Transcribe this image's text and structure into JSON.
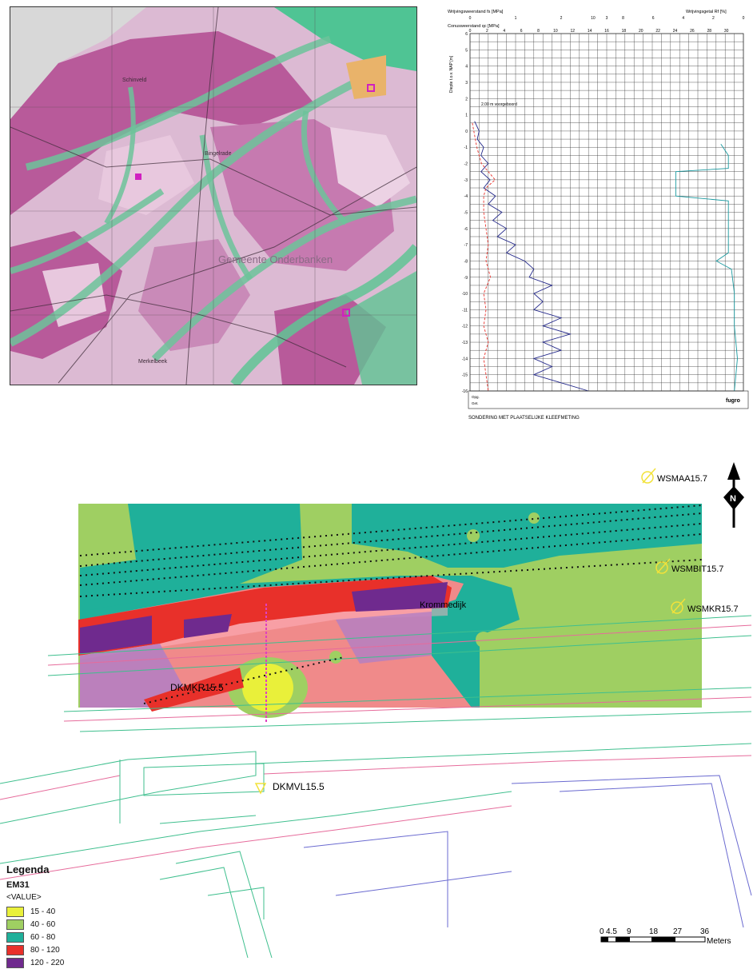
{
  "geomap": {
    "place_labels": [
      "Gemeente Onderbanken",
      "Schinveld",
      "Bingelrade",
      "Merkelbeek"
    ]
  },
  "cpt": {
    "title": "SONDERING MET PLAATSELIJKE KLEEFMETING",
    "top_axis_1_label": "Wrijvingsweerstand fs [MPa]",
    "top_axis_2_label": "Conusweerstand qc [MPa]",
    "right_axis_label": "Wrijvingsgetal Rf [%]",
    "y_axis_label": "Diepte t.o.v. NAP [m]",
    "annotation": "2.00 m voorgeboord",
    "fs_ticks": [
      "0",
      "1",
      "2",
      "3"
    ],
    "qc_ticks": [
      "0",
      "2",
      "4",
      "6",
      "8",
      "10",
      "12",
      "14",
      "16",
      "18",
      "20",
      "22",
      "24",
      "26",
      "28",
      "30"
    ],
    "rf_ticks": [
      "10",
      "8",
      "6",
      "4",
      "2",
      "0"
    ],
    "y_ticks": [
      "6",
      "5",
      "4",
      "3",
      "2",
      "1",
      "0",
      "-1",
      "-2",
      "-3",
      "-4",
      "-5",
      "-6",
      "-7",
      "-8",
      "-9",
      "-10",
      "-11",
      "-12",
      "-13",
      "-14",
      "-15",
      "-16"
    ],
    "footer_left": [
      "Opg.",
      "Get."
    ],
    "logo": "fugro"
  },
  "chart_data": {
    "type": "line",
    "title": "SONDERING MET PLAATSELIJKE KLEEFMETING",
    "ylabel": "Diepte t.o.v. NAP [m]",
    "ylim": [
      -16,
      6
    ],
    "series": [
      {
        "name": "Conusweerstand qc [MPa]",
        "xlim": [
          0,
          30
        ],
        "points": [
          [
            0.5,
            0.6
          ],
          [
            1,
            0
          ],
          [
            0.8,
            -0.5
          ],
          [
            1.5,
            -1
          ],
          [
            1.2,
            -1.5
          ],
          [
            2,
            -2
          ],
          [
            1.2,
            -2.5
          ],
          [
            2.2,
            -3
          ],
          [
            1.5,
            -3.5
          ],
          [
            2.8,
            -4
          ],
          [
            2,
            -4.5
          ],
          [
            3.5,
            -5
          ],
          [
            2.5,
            -5.5
          ],
          [
            4,
            -6
          ],
          [
            3,
            -6.5
          ],
          [
            5,
            -7
          ],
          [
            4,
            -7.5
          ],
          [
            6,
            -8
          ],
          [
            7,
            -8.5
          ],
          [
            6.5,
            -9
          ],
          [
            9,
            -9.5
          ],
          [
            7,
            -10
          ],
          [
            8,
            -10.5
          ],
          [
            7,
            -11
          ],
          [
            10,
            -11.5
          ],
          [
            8,
            -12
          ],
          [
            11,
            -12.5
          ],
          [
            8,
            -13
          ],
          [
            10,
            -13.5
          ],
          [
            7,
            -14
          ],
          [
            9,
            -14.5
          ],
          [
            7,
            -15
          ],
          [
            10,
            -15.5
          ],
          [
            13,
            -16
          ]
        ]
      },
      {
        "name": "Wrijvingsweerstand fs [MPa]",
        "xlim": [
          0,
          3
        ],
        "points": [
          [
            0.05,
            0.5
          ],
          [
            0.15,
            -1
          ],
          [
            0.25,
            -2
          ],
          [
            0.55,
            -3
          ],
          [
            0.35,
            -3.5
          ],
          [
            0.3,
            -4
          ],
          [
            0.3,
            -5
          ],
          [
            0.35,
            -6
          ],
          [
            0.4,
            -7
          ],
          [
            0.35,
            -8
          ],
          [
            0.45,
            -9
          ],
          [
            0.3,
            -10
          ],
          [
            0.35,
            -11
          ],
          [
            0.3,
            -12
          ],
          [
            0.4,
            -13
          ],
          [
            0.3,
            -14
          ],
          [
            0.35,
            -15
          ],
          [
            0.4,
            -16
          ]
        ]
      },
      {
        "name": "Wrijvingsgetal Rf [%]",
        "xlim": [
          10,
          0
        ],
        "points": [
          [
            1.5,
            -0.8
          ],
          [
            1,
            -1.5
          ],
          [
            1,
            -2.3
          ],
          [
            4.5,
            -2.5
          ],
          [
            4.5,
            -4
          ],
          [
            1,
            -4.3
          ],
          [
            1,
            -7.5
          ],
          [
            1.8,
            -8
          ],
          [
            0.8,
            -8.5
          ],
          [
            0.6,
            -10
          ],
          [
            0.6,
            -12
          ],
          [
            0.4,
            -14
          ],
          [
            0.6,
            -16
          ]
        ]
      }
    ]
  },
  "em31": {
    "labels": {
      "krommedijk": "Krommedijk",
      "dkmkr": "DKMKR15.5",
      "dkmvl": "DKMVL15.5",
      "wsmaa": "WSMAA15.7",
      "wsmbit": "WSMBIT15.7",
      "wsmkr": "WSMKR15.7"
    },
    "north": "N",
    "scale_ticks": [
      "0",
      "4.5",
      "9",
      "18",
      "27",
      "36"
    ],
    "scale_unit": "Meters",
    "legend": {
      "title": "Legenda",
      "layer": "EM31",
      "field": "<VALUE>",
      "items": [
        {
          "label": "15 - 40",
          "color": "#e9f03a"
        },
        {
          "label": "40 - 60",
          "color": "#9fcf62"
        },
        {
          "label": "60 - 80",
          "color": "#1fb09a"
        },
        {
          "label": "80 - 120",
          "color": "#e8302a"
        },
        {
          "label": "120 - 220",
          "color": "#6f2a8e"
        }
      ]
    }
  }
}
